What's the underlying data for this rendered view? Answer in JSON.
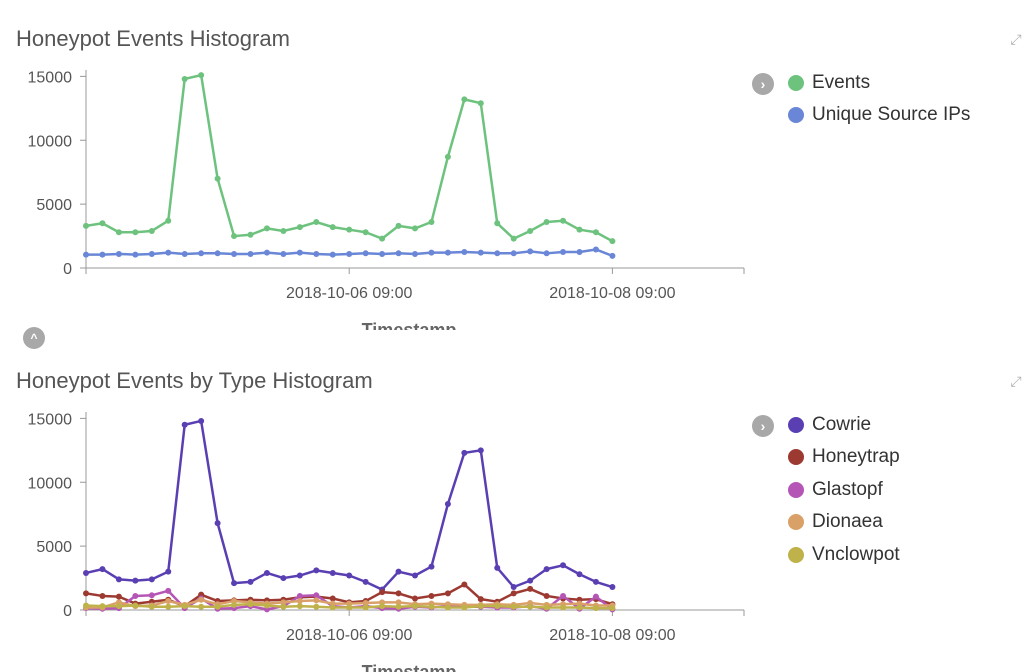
{
  "panels": [
    {
      "title": "Honeypot Events Histogram",
      "chart_data": {
        "type": "line",
        "xlabel": "Timestamp",
        "ylabel": "",
        "ylim": [
          0,
          15500
        ],
        "yticks": [
          0,
          5000,
          10000,
          15000
        ],
        "x_start": "2018-10-04 09:00",
        "x_step_hours": 3,
        "xticks": [
          {
            "label": "2018-10-06 09:00",
            "index": 16
          },
          {
            "label": "2018-10-08 09:00",
            "index": 32
          }
        ],
        "xlim_index": [
          0,
          40
        ],
        "legend_position": "right",
        "series": [
          {
            "name": "Events",
            "color": "#6dc27e",
            "values": [
              3300,
              3500,
              2800,
              2800,
              2900,
              3700,
              14800,
              15100,
              7000,
              2500,
              2600,
              3100,
              2900,
              3200,
              3600,
              3200,
              3000,
              2800,
              2300,
              3300,
              3100,
              3600,
              8700,
              13200,
              12900,
              3500,
              2300,
              2900,
              3600,
              3700,
              3000,
              2800,
              2100
            ]
          },
          {
            "name": "Unique Source IPs",
            "color": "#6a86d6",
            "values": [
              1050,
              1050,
              1100,
              1050,
              1100,
              1200,
              1100,
              1150,
              1150,
              1100,
              1100,
              1200,
              1100,
              1200,
              1100,
              1050,
              1100,
              1150,
              1100,
              1150,
              1100,
              1200,
              1200,
              1250,
              1200,
              1150,
              1150,
              1300,
              1150,
              1250,
              1250,
              1450,
              950
            ]
          }
        ]
      }
    },
    {
      "title": "Honeypot Events by Type Histogram",
      "chart_data": {
        "type": "line",
        "xlabel": "Timestamp",
        "ylabel": "",
        "ylim": [
          0,
          15500
        ],
        "yticks": [
          0,
          5000,
          10000,
          15000
        ],
        "x_start": "2018-10-04 09:00",
        "x_step_hours": 3,
        "xticks": [
          {
            "label": "2018-10-06 09:00",
            "index": 16
          },
          {
            "label": "2018-10-08 09:00",
            "index": 32
          }
        ],
        "xlim_index": [
          0,
          40
        ],
        "legend_position": "right",
        "series": [
          {
            "name": "Cowrie",
            "color": "#5a3fb3",
            "values": [
              2900,
              3200,
              2400,
              2300,
              2400,
              3000,
              14500,
              14800,
              6800,
              2100,
              2200,
              2900,
              2500,
              2700,
              3100,
              2900,
              2700,
              2200,
              1600,
              3000,
              2700,
              3400,
              8300,
              12300,
              12500,
              3300,
              1800,
              2300,
              3200,
              3500,
              2800,
              2200,
              1800
            ]
          },
          {
            "name": "Honeytrap",
            "color": "#9c3a32",
            "values": [
              1300,
              1100,
              1050,
              500,
              650,
              800,
              300,
              1200,
              700,
              750,
              800,
              750,
              800,
              1000,
              1050,
              900,
              600,
              700,
              1400,
              1300,
              900,
              1100,
              1300,
              2000,
              850,
              650,
              1300,
              1650,
              1100,
              900,
              800,
              850,
              450
            ]
          },
          {
            "name": "Glastopf",
            "color": "#b556b7",
            "values": [
              150,
              100,
              150,
              1100,
              1150,
              1500,
              150,
              900,
              100,
              150,
              300,
              50,
              300,
              1100,
              1150,
              300,
              200,
              300,
              150,
              100,
              250,
              200,
              300,
              250,
              250,
              200,
              200,
              300,
              100,
              1100,
              100,
              1050,
              50
            ]
          },
          {
            "name": "Dionaea",
            "color": "#d9a068",
            "values": [
              200,
              200,
              600,
              300,
              350,
              700,
              400,
              800,
              450,
              700,
              600,
              500,
              600,
              700,
              750,
              500,
              500,
              550,
              600,
              600,
              450,
              500,
              450,
              400,
              400,
              450,
              400,
              550,
              400,
              450,
              500,
              350,
              350
            ]
          },
          {
            "name": "Vnclowpot",
            "color": "#bfb24a",
            "values": [
              350,
              300,
              300,
              350,
              250,
              250,
              300,
              250,
              250,
              400,
              450,
              350,
              250,
              300,
              250,
              200,
              200,
              200,
              300,
              250,
              300,
              250,
              200,
              200,
              300,
              300,
              250,
              250,
              200,
              200,
              200,
              150,
              150
            ]
          }
        ]
      }
    }
  ]
}
